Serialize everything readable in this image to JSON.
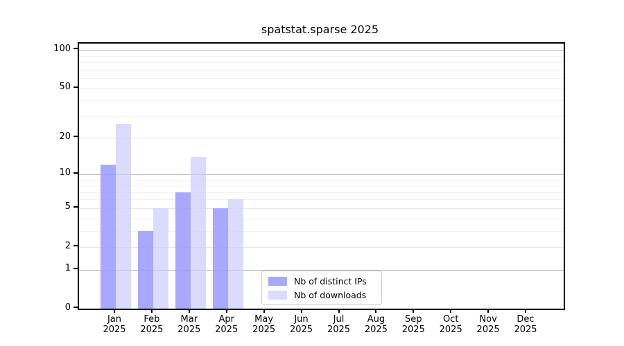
{
  "title": "spatstat.sparse 2025",
  "legend": {
    "items": [
      {
        "label": "Nb of distinct IPs"
      },
      {
        "label": "Nb of downloads"
      }
    ]
  },
  "colors": {
    "distinct_ips_bar": "#9999ff",
    "downloads_bar": "#ccccff",
    "axis": "#000000",
    "grid_major": "#b4b4b4",
    "grid_minor": "#f2f2f2"
  },
  "chart_data": {
    "type": "bar",
    "title": "spatstat.sparse 2025",
    "xlabel": "",
    "ylabel": "",
    "yscale": "log1p",
    "ylim": [
      0,
      113
    ],
    "grid": "both",
    "legend_position": "lower center",
    "categories": [
      {
        "month": "Jan",
        "year": "2025"
      },
      {
        "month": "Feb",
        "year": "2025"
      },
      {
        "month": "Mar",
        "year": "2025"
      },
      {
        "month": "Apr",
        "year": "2025"
      },
      {
        "month": "May",
        "year": "2025"
      },
      {
        "month": "Jun",
        "year": "2025"
      },
      {
        "month": "Jul",
        "year": "2025"
      },
      {
        "month": "Aug",
        "year": "2025"
      },
      {
        "month": "Sep",
        "year": "2025"
      },
      {
        "month": "Oct",
        "year": "2025"
      },
      {
        "month": "Nov",
        "year": "2025"
      },
      {
        "month": "Dec",
        "year": "2025"
      }
    ],
    "series": [
      {
        "name": "Nb of distinct IPs",
        "color": "#9999ff",
        "values": [
          12,
          3,
          7,
          5,
          0,
          0,
          0,
          0,
          0,
          0,
          0,
          0
        ]
      },
      {
        "name": "Nb of downloads",
        "color": "#ccccff",
        "values": [
          26,
          5,
          14,
          6,
          0,
          0,
          0,
          0,
          0,
          0,
          0,
          0
        ]
      }
    ],
    "ytick_labels": [
      "0",
      "1",
      "2",
      "5",
      "10",
      "20",
      "50",
      "100"
    ],
    "ytick_values": [
      0,
      1,
      2,
      5,
      10,
      20,
      50,
      100
    ]
  }
}
